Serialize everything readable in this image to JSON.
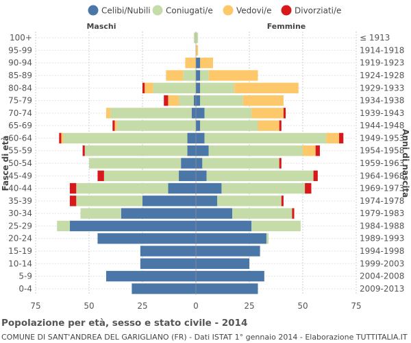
{
  "chart_data": {
    "type": "bar",
    "title": "Popolazione per età, sesso e stato civile - 2014",
    "subtitle": "COMUNE DI SANT'ANDREA DEL GARIGLIANO (FR) - Dati ISTAT 1° gennaio 2014 - Elaborazione TUTTITALIA.IT",
    "left_label": "Maschi",
    "right_label": "Femmine",
    "ylabel_left": "Fasce di età",
    "ylabel_right": "Anni di nascita",
    "xlim": [
      -75,
      75
    ],
    "xticks": [
      -75,
      -50,
      -25,
      0,
      25,
      50,
      75
    ],
    "xtick_labels": [
      "75",
      "50",
      "25",
      "0",
      "25",
      "50",
      "75"
    ],
    "grid": true,
    "legend_position": "top",
    "series": [
      {
        "name": "Celibi/Nubili",
        "color": "#4a76a8"
      },
      {
        "name": "Coniugati/e",
        "color": "#c5dca8"
      },
      {
        "name": "Vedovi/e",
        "color": "#fcc86a"
      },
      {
        "name": "Divorziati/e",
        "color": "#d7191c"
      }
    ],
    "age_groups": [
      "100+",
      "95-99",
      "90-94",
      "85-89",
      "80-84",
      "75-79",
      "70-74",
      "65-69",
      "60-64",
      "55-59",
      "50-54",
      "45-49",
      "40-44",
      "35-39",
      "30-34",
      "25-29",
      "20-24",
      "15-19",
      "10-14",
      "5-9",
      "0-4"
    ],
    "birth_years": [
      "≤ 1913",
      "1914-1918",
      "1919-1923",
      "1924-1928",
      "1929-1933",
      "1934-1938",
      "1939-1943",
      "1944-1948",
      "1949-1953",
      "1954-1958",
      "1959-1963",
      "1964-1968",
      "1969-1973",
      "1974-1978",
      "1979-1983",
      "1984-1988",
      "1989-1993",
      "1994-1998",
      "1999-2003",
      "2004-2008",
      "2009-2013"
    ],
    "males": [
      [
        0,
        1,
        0,
        0
      ],
      [
        0,
        0,
        0,
        0
      ],
      [
        0,
        0,
        5,
        0
      ],
      [
        0,
        6,
        8,
        0
      ],
      [
        0,
        20,
        4,
        1
      ],
      [
        1,
        7,
        5,
        2
      ],
      [
        2,
        38,
        2,
        0
      ],
      [
        0,
        37,
        1,
        1
      ],
      [
        4,
        58,
        1,
        1
      ],
      [
        4,
        48,
        0,
        1
      ],
      [
        7,
        43,
        0,
        0
      ],
      [
        8,
        35,
        0,
        3
      ],
      [
        13,
        43,
        0,
        3
      ],
      [
        25,
        31,
        0,
        3
      ],
      [
        35,
        19,
        0,
        0
      ],
      [
        59,
        6,
        0,
        0
      ],
      [
        46,
        0,
        0,
        0
      ],
      [
        26,
        0,
        0,
        0
      ],
      [
        26,
        0,
        0,
        0
      ],
      [
        42,
        0,
        0,
        0
      ],
      [
        30,
        0,
        0,
        0
      ]
    ],
    "females": [
      [
        0,
        1,
        0,
        0
      ],
      [
        0,
        0,
        1,
        0
      ],
      [
        2,
        0,
        6,
        0
      ],
      [
        2,
        4,
        23,
        0
      ],
      [
        2,
        16,
        30,
        0
      ],
      [
        2,
        20,
        19,
        0
      ],
      [
        4,
        22,
        15,
        1
      ],
      [
        2,
        27,
        10,
        1
      ],
      [
        4,
        57,
        6,
        2
      ],
      [
        6,
        44,
        6,
        2
      ],
      [
        3,
        36,
        0,
        1
      ],
      [
        5,
        50,
        0,
        2
      ],
      [
        12,
        39,
        0,
        3
      ],
      [
        10,
        30,
        0,
        1
      ],
      [
        17,
        28,
        0,
        1
      ],
      [
        26,
        23,
        0,
        0
      ],
      [
        33,
        1,
        0,
        0
      ],
      [
        30,
        0,
        0,
        0
      ],
      [
        25,
        0,
        0,
        0
      ],
      [
        32,
        0,
        0,
        0
      ],
      [
        29,
        0,
        0,
        0
      ]
    ]
  }
}
